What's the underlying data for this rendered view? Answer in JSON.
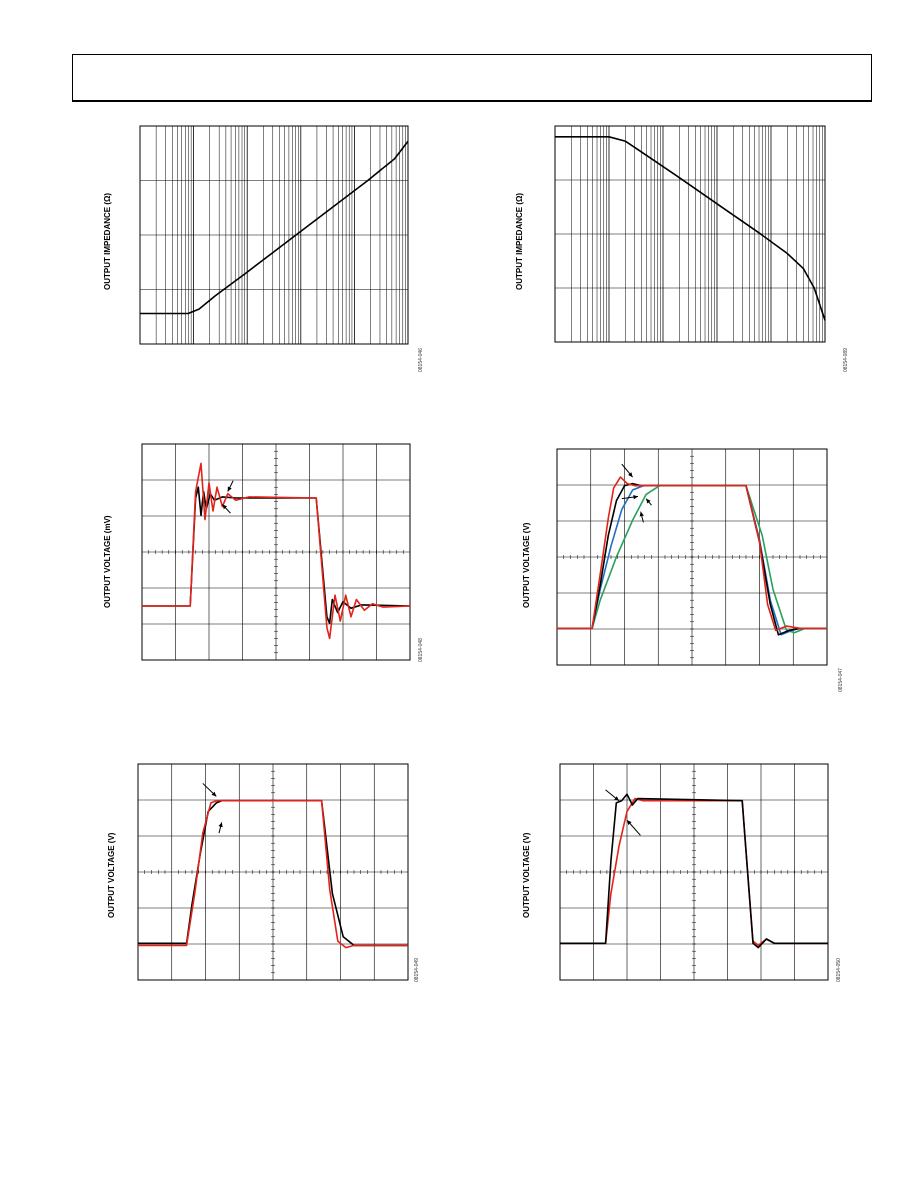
{
  "page": {
    "header": ""
  },
  "chart_data": [
    {
      "id": "c1",
      "type": "line",
      "ylabel": "OUTPUT IMPEDANCE (Ω)",
      "fig_id": "08154-046",
      "grid": "log-x",
      "series": [
        {
          "color": "#000000",
          "points": [
            [
              0,
              0.14
            ],
            [
              0.18,
              0.14
            ],
            [
              0.22,
              0.16
            ],
            [
              0.28,
              0.22
            ],
            [
              0.4,
              0.33
            ],
            [
              0.55,
              0.47
            ],
            [
              0.7,
              0.61
            ],
            [
              0.85,
              0.75
            ],
            [
              0.95,
              0.85
            ],
            [
              1,
              0.93
            ]
          ]
        }
      ]
    },
    {
      "id": "c2",
      "type": "line",
      "ylabel": "OUTPUT IMPEDANCE (Ω)",
      "fig_id": "08154-089",
      "grid": "log-x",
      "series": [
        {
          "color": "#000000",
          "points": [
            [
              0,
              0.95
            ],
            [
              0.2,
              0.95
            ],
            [
              0.26,
              0.93
            ],
            [
              0.32,
              0.88
            ],
            [
              0.45,
              0.77
            ],
            [
              0.6,
              0.64
            ],
            [
              0.75,
              0.51
            ],
            [
              0.86,
              0.41
            ],
            [
              0.92,
              0.34
            ],
            [
              0.96,
              0.25
            ],
            [
              1,
              0.1
            ]
          ]
        }
      ]
    },
    {
      "id": "c3",
      "type": "line",
      "ylabel": "OUTPUT VOLTAGE (mV)",
      "fig_id": "08154-048",
      "grid": "scope",
      "series": [
        {
          "color": "#000000",
          "points": [
            [
              0,
              0.25
            ],
            [
              0.18,
              0.25
            ],
            [
              0.2,
              0.75
            ],
            [
              0.21,
              0.8
            ],
            [
              0.22,
              0.67
            ],
            [
              0.23,
              0.78
            ],
            [
              0.24,
              0.7
            ],
            [
              0.255,
              0.77
            ],
            [
              0.27,
              0.74
            ],
            [
              0.3,
              0.755
            ],
            [
              0.35,
              0.75
            ],
            [
              0.65,
              0.75
            ],
            [
              0.69,
              0.2
            ],
            [
              0.7,
              0.17
            ],
            [
              0.71,
              0.28
            ],
            [
              0.73,
              0.22
            ],
            [
              0.75,
              0.27
            ],
            [
              0.78,
              0.24
            ],
            [
              0.82,
              0.255
            ],
            [
              1,
              0.25
            ]
          ]
        },
        {
          "color": "#e2231a",
          "points": [
            [
              0,
              0.25
            ],
            [
              0.18,
              0.25
            ],
            [
              0.2,
              0.78
            ],
            [
              0.22,
              0.91
            ],
            [
              0.235,
              0.65
            ],
            [
              0.25,
              0.82
            ],
            [
              0.265,
              0.69
            ],
            [
              0.28,
              0.8
            ],
            [
              0.3,
              0.71
            ],
            [
              0.32,
              0.77
            ],
            [
              0.35,
              0.74
            ],
            [
              0.4,
              0.755
            ],
            [
              0.65,
              0.75
            ],
            [
              0.69,
              0.15
            ],
            [
              0.7,
              0.1
            ],
            [
              0.72,
              0.3
            ],
            [
              0.74,
              0.18
            ],
            [
              0.76,
              0.3
            ],
            [
              0.78,
              0.2
            ],
            [
              0.8,
              0.28
            ],
            [
              0.83,
              0.23
            ],
            [
              0.86,
              0.26
            ],
            [
              0.9,
              0.245
            ],
            [
              1,
              0.25
            ]
          ]
        }
      ],
      "arrows": [
        [
          0.34,
          0.83,
          0.32,
          0.78
        ],
        [
          0.33,
          0.68,
          0.3,
          0.72
        ]
      ]
    },
    {
      "id": "c4",
      "type": "line",
      "ylabel": "OUTPUT VOLTAGE (V)",
      "fig_id": "08154-047",
      "grid": "scope",
      "series": [
        {
          "color": "#2aa05a",
          "points": [
            [
              0,
              0.17
            ],
            [
              0.13,
              0.17
            ],
            [
              0.16,
              0.3
            ],
            [
              0.22,
              0.5
            ],
            [
              0.28,
              0.67
            ],
            [
              0.33,
              0.79
            ],
            [
              0.38,
              0.83
            ],
            [
              0.7,
              0.83
            ],
            [
              0.76,
              0.6
            ],
            [
              0.8,
              0.35
            ],
            [
              0.85,
              0.16
            ],
            [
              0.88,
              0.15
            ],
            [
              0.92,
              0.17
            ],
            [
              1,
              0.17
            ]
          ]
        },
        {
          "color": "#1f6fc2",
          "points": [
            [
              0,
              0.17
            ],
            [
              0.13,
              0.17
            ],
            [
              0.16,
              0.35
            ],
            [
              0.2,
              0.55
            ],
            [
              0.24,
              0.72
            ],
            [
              0.28,
              0.81
            ],
            [
              0.32,
              0.83
            ],
            [
              0.7,
              0.83
            ],
            [
              0.75,
              0.58
            ],
            [
              0.79,
              0.3
            ],
            [
              0.83,
              0.14
            ],
            [
              0.87,
              0.16
            ],
            [
              0.9,
              0.17
            ],
            [
              1,
              0.17
            ]
          ]
        },
        {
          "color": "#000000",
          "points": [
            [
              0,
              0.17
            ],
            [
              0.13,
              0.17
            ],
            [
              0.16,
              0.37
            ],
            [
              0.19,
              0.6
            ],
            [
              0.22,
              0.76
            ],
            [
              0.25,
              0.83
            ],
            [
              0.28,
              0.84
            ],
            [
              0.31,
              0.83
            ],
            [
              0.7,
              0.83
            ],
            [
              0.75,
              0.57
            ],
            [
              0.79,
              0.28
            ],
            [
              0.82,
              0.14
            ],
            [
              0.86,
              0.16
            ],
            [
              0.9,
              0.17
            ],
            [
              1,
              0.17
            ]
          ]
        },
        {
          "color": "#e2231a",
          "points": [
            [
              0,
              0.17
            ],
            [
              0.13,
              0.17
            ],
            [
              0.16,
              0.42
            ],
            [
              0.19,
              0.68
            ],
            [
              0.21,
              0.82
            ],
            [
              0.235,
              0.87
            ],
            [
              0.26,
              0.84
            ],
            [
              0.29,
              0.83
            ],
            [
              0.7,
              0.83
            ],
            [
              0.75,
              0.57
            ],
            [
              0.78,
              0.28
            ],
            [
              0.81,
              0.16
            ],
            [
              0.85,
              0.18
            ],
            [
              0.9,
              0.17
            ],
            [
              1,
              0.17
            ]
          ]
        }
      ],
      "arrows": [
        [
          0.24,
          0.93,
          0.28,
          0.87
        ],
        [
          0.24,
          0.77,
          0.3,
          0.78
        ],
        [
          0.35,
          0.74,
          0.33,
          0.77
        ],
        [
          0.32,
          0.66,
          0.31,
          0.71
        ]
      ]
    },
    {
      "id": "c5",
      "type": "line",
      "ylabel": "OUTPUT VOLTAGE (V)",
      "fig_id": "08154-049",
      "grid": "scope",
      "series": [
        {
          "color": "#000000",
          "points": [
            [
              0,
              0.17
            ],
            [
              0.18,
              0.17
            ],
            [
              0.2,
              0.35
            ],
            [
              0.23,
              0.58
            ],
            [
              0.26,
              0.78
            ],
            [
              0.29,
              0.82
            ],
            [
              0.31,
              0.83
            ],
            [
              0.68,
              0.83
            ],
            [
              0.72,
              0.4
            ],
            [
              0.76,
              0.2
            ],
            [
              0.8,
              0.16
            ],
            [
              1,
              0.16
            ]
          ]
        },
        {
          "color": "#e2231a",
          "points": [
            [
              0,
              0.16
            ],
            [
              0.18,
              0.16
            ],
            [
              0.21,
              0.4
            ],
            [
              0.24,
              0.68
            ],
            [
              0.27,
              0.82
            ],
            [
              0.29,
              0.83
            ],
            [
              0.68,
              0.83
            ],
            [
              0.71,
              0.42
            ],
            [
              0.74,
              0.18
            ],
            [
              0.77,
              0.15
            ],
            [
              0.8,
              0.16
            ],
            [
              1,
              0.16
            ]
          ]
        }
      ],
      "arrows": [
        [
          0.24,
          0.91,
          0.29,
          0.85
        ],
        [
          0.3,
          0.68,
          0.31,
          0.73
        ]
      ]
    },
    {
      "id": "c6",
      "type": "line",
      "ylabel": "OUTPUT VOLTAGE (V)",
      "fig_id": "08154-050",
      "grid": "scope",
      "series": [
        {
          "color": "#e2231a",
          "points": [
            [
              0,
              0.17
            ],
            [
              0.17,
              0.17
            ],
            [
              0.19,
              0.4
            ],
            [
              0.22,
              0.62
            ],
            [
              0.25,
              0.78
            ],
            [
              0.28,
              0.84
            ],
            [
              0.31,
              0.83
            ],
            [
              0.68,
              0.83
            ],
            [
              0.7,
              0.5
            ],
            [
              0.72,
              0.18
            ],
            [
              0.74,
              0.16
            ],
            [
              0.77,
              0.19
            ],
            [
              0.8,
              0.17
            ],
            [
              1,
              0.17
            ]
          ]
        },
        {
          "color": "#000000",
          "points": [
            [
              0,
              0.17
            ],
            [
              0.17,
              0.17
            ],
            [
              0.19,
              0.55
            ],
            [
              0.21,
              0.82
            ],
            [
              0.23,
              0.83
            ],
            [
              0.25,
              0.86
            ],
            [
              0.27,
              0.81
            ],
            [
              0.29,
              0.84
            ],
            [
              0.68,
              0.83
            ],
            [
              0.7,
              0.5
            ],
            [
              0.72,
              0.17
            ],
            [
              0.74,
              0.15
            ],
            [
              0.77,
              0.19
            ],
            [
              0.8,
              0.17
            ],
            [
              1,
              0.17
            ]
          ]
        }
      ],
      "arrows": [
        [
          0.17,
          0.88,
          0.22,
          0.83
        ],
        [
          0.3,
          0.67,
          0.25,
          0.74
        ]
      ]
    }
  ]
}
